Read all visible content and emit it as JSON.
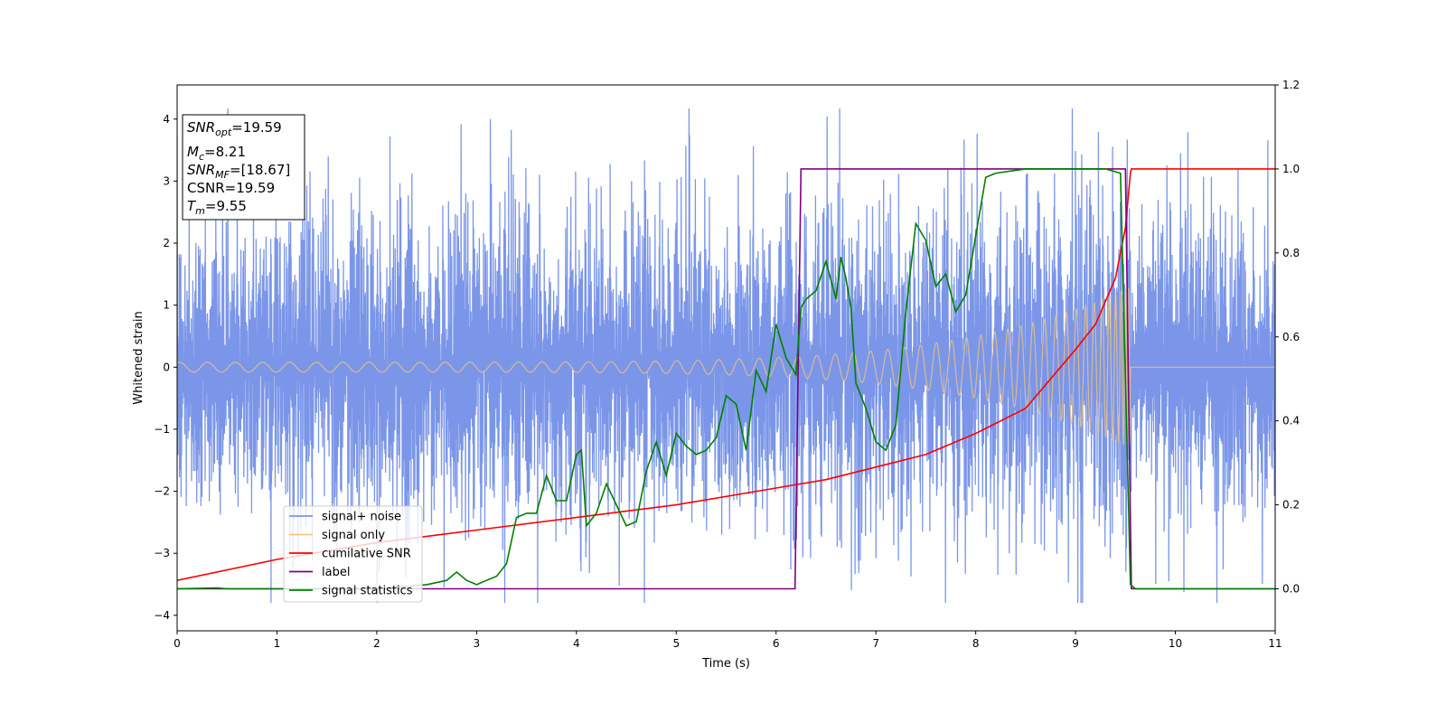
{
  "chart_data": {
    "type": "line",
    "xlabel": "Time (s)",
    "ylabel": "Whitened strain",
    "xlim": [
      0,
      11
    ],
    "ylim_left": [
      -4.25,
      4.55
    ],
    "ylim_right": [
      -0.1,
      1.2
    ],
    "x_ticks": [
      "0",
      "1",
      "2",
      "3",
      "4",
      "5",
      "6",
      "7",
      "8",
      "9",
      "10",
      "11"
    ],
    "y_ticks_left": [
      "4",
      "3",
      "2",
      "1",
      "0",
      "−1",
      "−2",
      "−3",
      "−4"
    ],
    "y_ticks_right": [
      "1.2",
      "1.0",
      "0.8",
      "0.6",
      "0.4",
      "0.2",
      "0.0"
    ],
    "grid": false,
    "legend_position": "lower-left",
    "annotation": {
      "snr_opt": "=19.59",
      "mc": "=8.21",
      "snr_mf": "=[18.67]",
      "csnr": "CSNR=19.59",
      "tm": "=9.55"
    },
    "series": [
      {
        "name": "signal+ noise",
        "color": "#7b96e8",
        "axis": "left",
        "description_values": {
          "x_range": [
            0,
            11
          ],
          "approx_amplitude": 2.4,
          "peak_max": 4.17,
          "peak_min": -3.8
        }
      },
      {
        "name": "signal only",
        "color": "#f5c57a",
        "axis": "left",
        "chirp": {
          "t_start": 0,
          "t_merger": 9.55,
          "amplitude_start": 0.08,
          "amplitude_end": 1.3,
          "after_merger": 0
        }
      },
      {
        "name": "cumilative SNR",
        "color": "#ff0000",
        "axis": "right",
        "x": [
          0,
          1,
          2,
          3,
          4,
          5,
          6,
          6.5,
          7,
          7.5,
          8,
          8.5,
          9,
          9.2,
          9.4,
          9.5,
          9.55,
          9.56,
          11
        ],
        "y": [
          0.02,
          0.07,
          0.11,
          0.14,
          0.17,
          0.2,
          0.24,
          0.26,
          0.29,
          0.32,
          0.37,
          0.43,
          0.57,
          0.63,
          0.74,
          0.86,
          0.99,
          1.0,
          1.0
        ]
      },
      {
        "name": "label",
        "color": "#800080",
        "axis": "right",
        "x": [
          0,
          6.19,
          6.25,
          9.5,
          9.56,
          11
        ],
        "y": [
          0.0,
          0.0,
          1.0,
          1.0,
          0.0,
          0.0
        ]
      },
      {
        "name": "signal statistics",
        "color": "#008000",
        "axis": "right",
        "x": [
          0,
          0.4,
          0.5,
          1,
          2,
          2.5,
          2.7,
          2.8,
          2.9,
          3.0,
          3.1,
          3.2,
          3.3,
          3.4,
          3.5,
          3.6,
          3.7,
          3.8,
          3.9,
          4.0,
          4.05,
          4.1,
          4.2,
          4.3,
          4.4,
          4.5,
          4.6,
          4.7,
          4.8,
          4.9,
          5.0,
          5.1,
          5.2,
          5.3,
          5.4,
          5.5,
          5.6,
          5.7,
          5.8,
          5.9,
          6.0,
          6.1,
          6.2,
          6.25,
          6.3,
          6.4,
          6.5,
          6.6,
          6.65,
          6.7,
          6.75,
          6.8,
          6.9,
          7.0,
          7.1,
          7.2,
          7.3,
          7.4,
          7.5,
          7.6,
          7.7,
          7.8,
          7.9,
          8.0,
          8.1,
          8.2,
          8.5,
          9.0,
          9.3,
          9.45,
          9.5,
          9.55,
          9.6,
          11
        ],
        "y": [
          0.0,
          0.002,
          0.0,
          0.0,
          0.0,
          0.01,
          0.02,
          0.04,
          0.02,
          0.01,
          0.02,
          0.03,
          0.06,
          0.17,
          0.18,
          0.18,
          0.27,
          0.21,
          0.21,
          0.32,
          0.33,
          0.15,
          0.18,
          0.25,
          0.2,
          0.15,
          0.16,
          0.28,
          0.35,
          0.27,
          0.37,
          0.34,
          0.32,
          0.33,
          0.36,
          0.46,
          0.44,
          0.33,
          0.52,
          0.47,
          0.63,
          0.55,
          0.51,
          0.67,
          0.69,
          0.71,
          0.78,
          0.69,
          0.79,
          0.74,
          0.67,
          0.49,
          0.43,
          0.35,
          0.33,
          0.39,
          0.66,
          0.87,
          0.83,
          0.72,
          0.75,
          0.66,
          0.7,
          0.84,
          0.98,
          0.99,
          1.0,
          1.0,
          1.0,
          0.99,
          0.5,
          0.01,
          0.0,
          0.0
        ]
      }
    ]
  }
}
